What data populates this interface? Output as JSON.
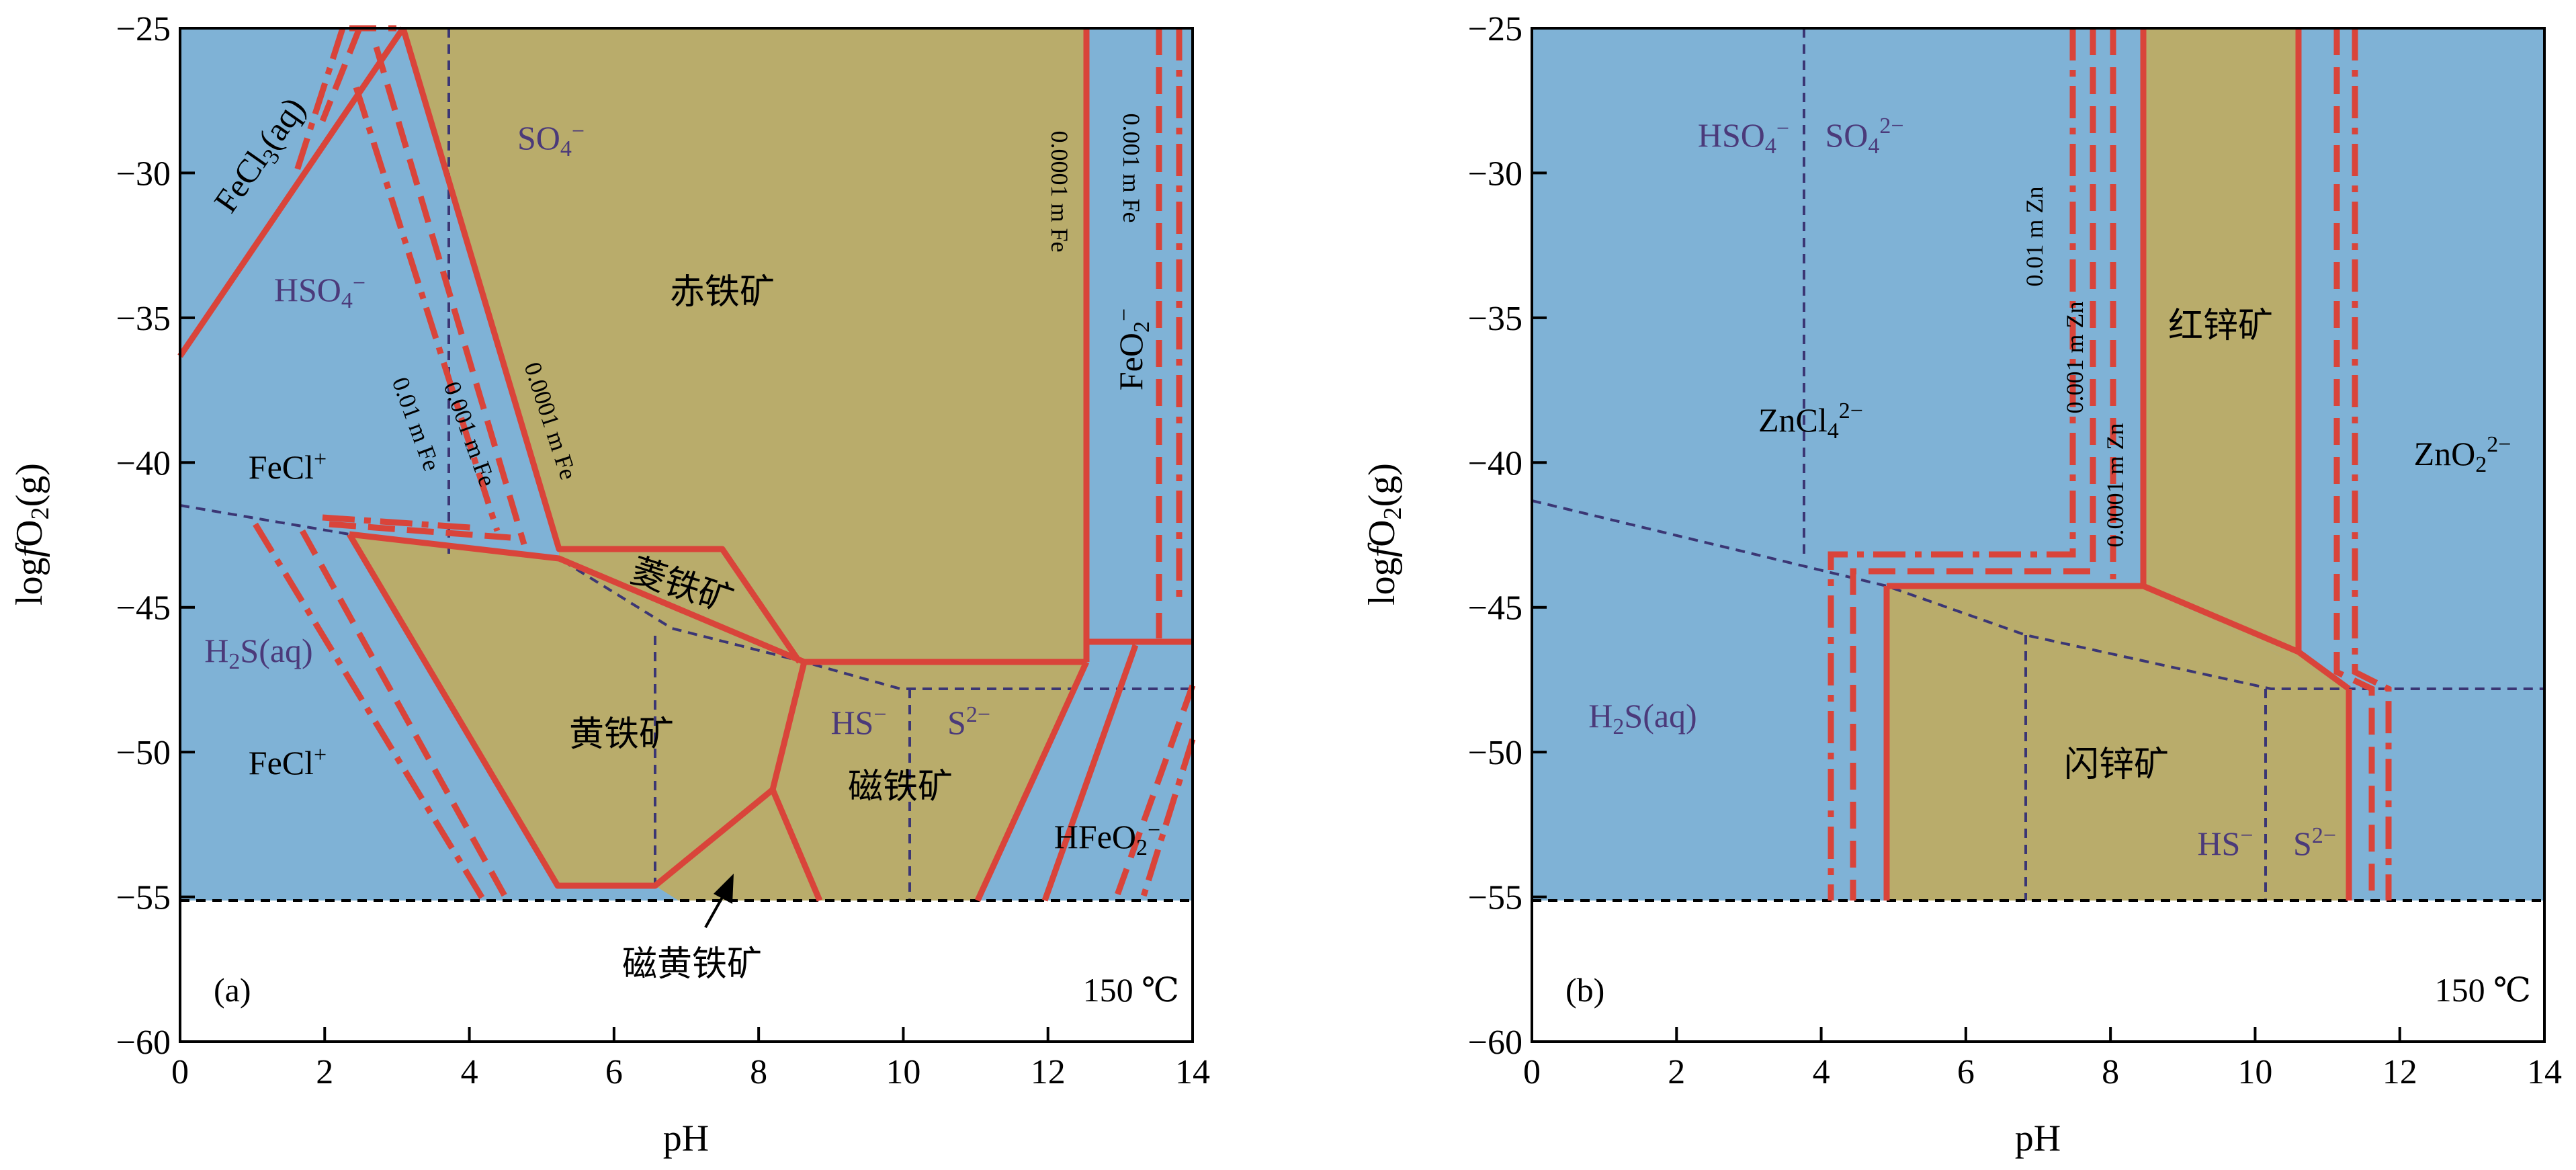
{
  "colors": {
    "fluid": "#7fb2d6",
    "mineral": "#b9ac6b",
    "boundary": "#d9443a",
    "species_text": "#4b3a7a",
    "dashed_guide": "#3b3674",
    "axis": "#000000"
  },
  "chart_data": [
    {
      "type": "area",
      "panel_tag": "(a)",
      "temperature": "150 ℃",
      "xlabel": "pH",
      "ylabel": "logfO2(g)",
      "xlim": [
        0,
        14
      ],
      "ylim": [
        -60,
        -25
      ],
      "xticks": [
        0,
        2,
        4,
        6,
        8,
        10,
        12,
        14
      ],
      "yticks": [
        -25,
        -30,
        -35,
        -40,
        -45,
        -50,
        -55,
        -60
      ],
      "stability_floor": -55,
      "regions": [
        {
          "name": "赤铁矿",
          "kind": "mineral",
          "polygon": [
            [
              3.1,
              -25
            ],
            [
              12.55,
              -25
            ],
            [
              12.55,
              -47
            ],
            [
              8.9,
              -47
            ],
            [
              8.5,
              -47
            ],
            [
              7.5,
              -43
            ],
            [
              5.3,
              -43
            ],
            [
              3.1,
              -25
            ]
          ]
        },
        {
          "name": "菱铁矿",
          "kind": "mineral",
          "polygon": [
            [
              5.3,
              -43
            ],
            [
              7.5,
              -43
            ],
            [
              8.5,
              -47
            ],
            [
              5.3,
              -43.2
            ]
          ]
        },
        {
          "name": "黄铁矿",
          "kind": "mineral",
          "polygon": [
            [
              2.3,
              -42.6
            ],
            [
              5.3,
              -43.2
            ],
            [
              8.9,
              -47
            ],
            [
              8.1,
              -51.5
            ],
            [
              6.55,
              -54.8
            ],
            [
              5.2,
              -54.8
            ]
          ]
        },
        {
          "name": "磁黄铁矿",
          "kind": "mineral",
          "polygon": [
            [
              6.55,
              -54.8
            ],
            [
              8.1,
              -51.5
            ],
            [
              8.5,
              -55
            ],
            [
              6.9,
              -55
            ]
          ]
        },
        {
          "name": "磁铁矿",
          "kind": "mineral",
          "polygon": [
            [
              8.9,
              -47
            ],
            [
              12.55,
              -47
            ],
            [
              11.0,
              -55
            ],
            [
              8.8,
              -55
            ],
            [
              8.1,
              -51.5
            ]
          ]
        }
      ],
      "species_fields": [
        {
          "label": "SO4−",
          "x": 5.0,
          "y": -29
        },
        {
          "label": "HSO4−",
          "x": 1.9,
          "y": -36
        },
        {
          "label": "H2S(aq)",
          "x": 1.1,
          "y": -47
        },
        {
          "label": "HS−",
          "x": 9.0,
          "y": -49.2
        },
        {
          "label": "S2−",
          "x": 10.8,
          "y": -49.2
        }
      ],
      "aqueous_fields": [
        {
          "label": "FeCl+",
          "x": 1.5,
          "y": -41
        },
        {
          "label": "FeCl+",
          "x": 1.5,
          "y": -50.5
        },
        {
          "label": "FeCl3(aq)",
          "x": 1.2,
          "y": -30
        },
        {
          "label": "FeO2−",
          "x": 13.3,
          "y": -37
        },
        {
          "label": "HFeO2−",
          "x": 12.5,
          "y": -53.5
        }
      ],
      "concentration_labels": [
        "0.01 m Fe",
        "0.001 m Fe",
        "0.0001 m Fe",
        "0.0001 m Fe",
        "0.001 m Fe"
      ],
      "mineral_labels": [
        "赤铁矿",
        "菱铁矿",
        "黄铁矿",
        "磁铁矿",
        "磁黄铁矿"
      ]
    },
    {
      "type": "area",
      "panel_tag": "(b)",
      "temperature": "150 ℃",
      "xlabel": "pH",
      "ylabel": "logfO2(g)",
      "xlim": [
        0,
        14
      ],
      "ylim": [
        -60,
        -25
      ],
      "xticks": [
        0,
        2,
        4,
        6,
        8,
        10,
        12,
        14
      ],
      "yticks": [
        -25,
        -30,
        -35,
        -40,
        -45,
        -50,
        -55,
        -60
      ],
      "stability_floor": -55,
      "regions": [
        {
          "name": "红锌矿",
          "kind": "mineral",
          "polygon": [
            [
              8.45,
              -25
            ],
            [
              10.6,
              -25
            ],
            [
              10.6,
              -46.5
            ],
            [
              11.3,
              -47.8
            ],
            [
              8.45,
              -44.4
            ]
          ]
        },
        {
          "name": "闪锌矿",
          "kind": "mineral",
          "polygon": [
            [
              4.9,
              -44.4
            ],
            [
              8.45,
              -44.4
            ],
            [
              11.3,
              -47.8
            ],
            [
              11.3,
              -55
            ],
            [
              4.9,
              -55
            ]
          ]
        }
      ],
      "species_fields": [
        {
          "label": "HSO4−",
          "x": 2.4,
          "y": -28.3
        },
        {
          "label": "SO42−",
          "x": 4.6,
          "y": -28.3
        },
        {
          "label": "H2S(aq)",
          "x": 1.2,
          "y": -48.8
        },
        {
          "label": "HS−",
          "x": 9.3,
          "y": -54.1
        },
        {
          "label": "S2−",
          "x": 10.6,
          "y": -54.1
        }
      ],
      "aqueous_fields": [
        {
          "label": "ZnCl42−",
          "x": 3.1,
          "y": -41
        },
        {
          "label": "ZnO22−",
          "x": 12.6,
          "y": -41
        }
      ],
      "concentration_labels": [
        "0.01 m Zn",
        "0.001 m Zn",
        "0.0001 m Zn"
      ],
      "mineral_labels": [
        "红锌矿",
        "闪锌矿"
      ]
    }
  ]
}
